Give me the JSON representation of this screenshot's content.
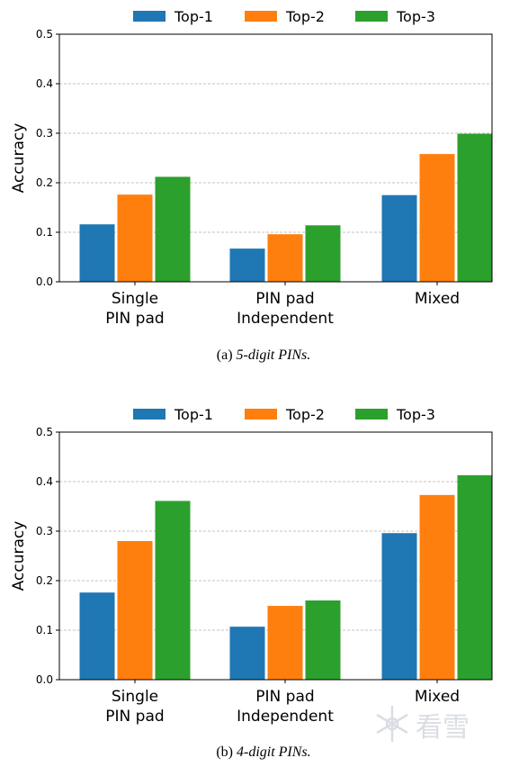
{
  "colors": {
    "Top-1": "#1f77b4",
    "Top-2": "#ff7f0e",
    "Top-3": "#2ca02c",
    "grid": "#b0b0b0"
  },
  "watermark": "看雪",
  "chart_data": [
    {
      "type": "bar",
      "caption_prefix": "(a) ",
      "caption_italic": "5-digit PINs.",
      "ylabel": "Accuracy",
      "ylim": [
        0,
        0.5
      ],
      "yticks": [
        "0.0",
        "0.1",
        "0.2",
        "0.3",
        "0.4",
        "0.5"
      ],
      "grid": "horizontal-dashed",
      "legend_position": "top-center",
      "categories": [
        [
          "Single",
          "PIN pad"
        ],
        [
          "PIN pad",
          "Independent"
        ],
        [
          "Mixed"
        ]
      ],
      "series": [
        {
          "name": "Top-1",
          "values": [
            0.116,
            0.067,
            0.175
          ]
        },
        {
          "name": "Top-2",
          "values": [
            0.176,
            0.096,
            0.258
          ]
        },
        {
          "name": "Top-3",
          "values": [
            0.212,
            0.114,
            0.299
          ]
        }
      ]
    },
    {
      "type": "bar",
      "caption_prefix": "(b) ",
      "caption_italic": "4-digit PINs.",
      "ylabel": "Accuracy",
      "ylim": [
        0,
        0.5
      ],
      "yticks": [
        "0.0",
        "0.1",
        "0.2",
        "0.3",
        "0.4",
        "0.5"
      ],
      "grid": "horizontal-dashed",
      "legend_position": "top-center",
      "categories": [
        [
          "Single",
          "PIN pad"
        ],
        [
          "PIN pad",
          "Independent"
        ],
        [
          "Mixed"
        ]
      ],
      "series": [
        {
          "name": "Top-1",
          "values": [
            0.176,
            0.107,
            0.296
          ]
        },
        {
          "name": "Top-2",
          "values": [
            0.28,
            0.149,
            0.373
          ]
        },
        {
          "name": "Top-3",
          "values": [
            0.361,
            0.16,
            0.413
          ]
        }
      ]
    }
  ]
}
